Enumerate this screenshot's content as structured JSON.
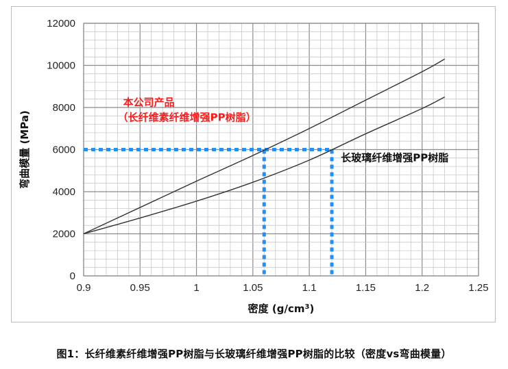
{
  "chart_data": {
    "type": "line",
    "title": "",
    "xlabel": "密度 (g/cm",
    "xlabel_sup": "3",
    "xlabel_end": ")",
    "ylabel": "弯曲模量 (MPa)",
    "xlim": [
      0.9,
      1.25
    ],
    "ylim": [
      0,
      12000
    ],
    "x_ticks": [
      "0.9",
      "0.95",
      "1",
      "1.05",
      "1.1",
      "1.15",
      "1.2",
      "1.25"
    ],
    "y_ticks": [
      "0",
      "2000",
      "4000",
      "6000",
      "8000",
      "10000",
      "12000"
    ],
    "x_tick_values": [
      0.9,
      0.95,
      1.0,
      1.05,
      1.1,
      1.15,
      1.2,
      1.25
    ],
    "y_tick_values": [
      0,
      2000,
      4000,
      6000,
      8000,
      10000,
      12000
    ],
    "grid": true,
    "series": [
      {
        "x": [
          0.9,
          0.95,
          1.0,
          1.05,
          1.1,
          1.15,
          1.2,
          1.22
        ],
        "values": [
          2000,
          3250,
          4500,
          5720,
          7000,
          8350,
          9700,
          10300
        ],
        "color": "#333333"
      },
      {
        "x": [
          0.9,
          0.95,
          1.0,
          1.05,
          1.1,
          1.15,
          1.2,
          1.22
        ],
        "values": [
          2000,
          2750,
          3550,
          4450,
          5500,
          6750,
          7950,
          8500
        ],
        "color": "#333333"
      }
    ],
    "reference_lines": {
      "color": "#1e90ff",
      "y_value": 6000,
      "x_from": 0.9,
      "x_values": [
        1.06,
        1.12
      ]
    },
    "annotations": [
      {
        "lines": [
          "本公司产品",
          "（长纤维素纤维增强PP树脂）"
        ],
        "color": "#ff1a1a",
        "x": 0.935,
        "y": 8080
      },
      {
        "lines": [
          "长玻璃纤维增强PP树脂"
        ],
        "color": "#111111",
        "x": 1.128,
        "y": 5450
      }
    ]
  },
  "caption": "图1：长纤维素纤维增强PP树脂与长玻璃纤维增强PP树脂的比较（密度vs弯曲模量）"
}
